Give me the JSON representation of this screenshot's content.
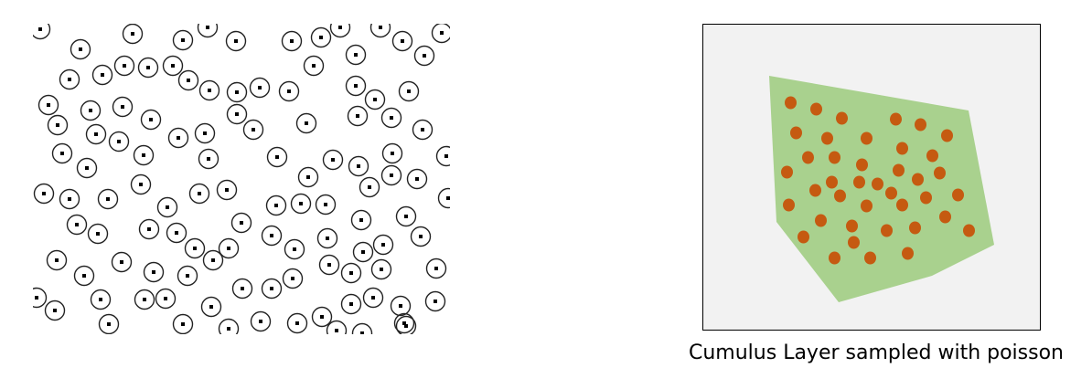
{
  "caption": "Cumulus Layer sampled with poisson",
  "colors": {
    "sample_ring": "#222222",
    "sample_center": "#000000",
    "panel_border": "#000000",
    "panel_background": "#f2f2f2",
    "layer_fill": "#a9d18e",
    "sample_dot": "#c55a11",
    "caption_text": "#000000"
  }
}
